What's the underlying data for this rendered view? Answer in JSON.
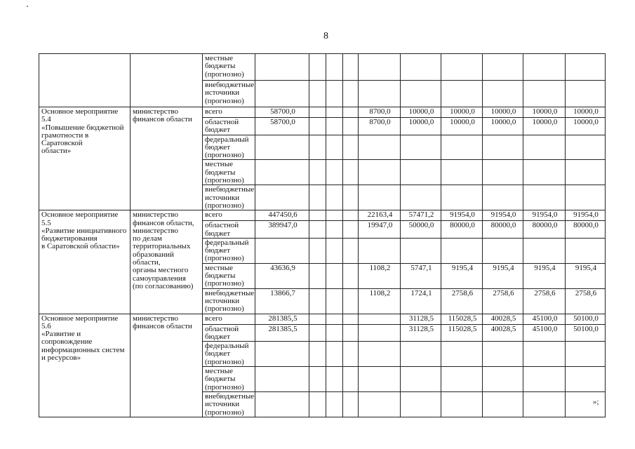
{
  "page": {
    "number": "8",
    "closing_mark": "»;"
  },
  "table": {
    "blocks": [
      {
        "program": "",
        "ministry": "",
        "rows": [
          {
            "type": "местные\nбюджеты\n(прогнозно)",
            "total": "",
            "years": [
              "",
              "",
              "",
              "",
              "",
              ""
            ]
          },
          {
            "type": "внебюджетные\nисточники\n(прогнозно)",
            "total": "",
            "years": [
              "",
              "",
              "",
              "",
              "",
              ""
            ]
          }
        ]
      },
      {
        "program": "Основное мероприятие 5.4\n«Повышение бюджетной\nграмотности в Саратовской\nобласти»",
        "ministry": "министерство\nфинансов области",
        "rows": [
          {
            "type": "всего",
            "total": "58700,0",
            "years": [
              "8700,0",
              "10000,0",
              "10000,0",
              "10000,0",
              "10000,0",
              "10000,0"
            ]
          },
          {
            "type": "областной\nбюджет",
            "total": "58700,0",
            "years": [
              "8700,0",
              "10000,0",
              "10000,0",
              "10000,0",
              "10000,0",
              "10000,0"
            ]
          },
          {
            "type": "федеральный\nбюджет\n(прогнозно)",
            "total": "",
            "years": [
              "",
              "",
              "",
              "",
              "",
              ""
            ]
          },
          {
            "type": "местные\nбюджеты\n(прогнозно)",
            "total": "",
            "years": [
              "",
              "",
              "",
              "",
              "",
              ""
            ]
          },
          {
            "type": "внебюджетные\nисточники\n(прогнозно)",
            "total": "",
            "years": [
              "",
              "",
              "",
              "",
              "",
              ""
            ]
          }
        ]
      },
      {
        "program": "Основное мероприятие 5.5\n«Развитие инициативного\nбюджетирования\nв Саратовской области»",
        "ministry": "министерство\nфинансов области,\nминистерство\nпо делам\nтерриториальных\nобразований области,\nорганы местного\nсамоуправления\n(по согласованию)",
        "rows": [
          {
            "type": "всего",
            "total": "447450,6",
            "years": [
              "22163,4",
              "57471,2",
              "91954,0",
              "91954,0",
              "91954,0",
              "91954,0"
            ]
          },
          {
            "type": "областной\nбюджет",
            "total": "389947,0",
            "years": [
              "19947,0",
              "50000,0",
              "80000,0",
              "80000,0",
              "80000,0",
              "80000,0"
            ]
          },
          {
            "type": "федеральный\nбюджет\n(прогнозно)",
            "total": "",
            "years": [
              "",
              "",
              "",
              "",
              "",
              ""
            ]
          },
          {
            "type": "местные\nбюджеты\n(прогнозно)",
            "total": "43636,9",
            "years": [
              "1108,2",
              "5747,1",
              "9195,4",
              "9195,4",
              "9195,4",
              "9195,4"
            ]
          },
          {
            "type": "внебюджетные\nисточники\n(прогнозно)",
            "total": "13866,7",
            "years": [
              "1108,2",
              "1724,1",
              "2758,6",
              "2758,6",
              "2758,6",
              "2758,6"
            ]
          }
        ]
      },
      {
        "program": "Основное мероприятие 5.6\n«Развитие и сопровождение\nинформационных систем\nи ресурсов»",
        "ministry": "министерство\nфинансов области",
        "rows": [
          {
            "type": "всего",
            "total": "281385,5",
            "years": [
              "",
              "31128,5",
              "115028,5",
              "40028,5",
              "45100,0",
              "50100,0"
            ]
          },
          {
            "type": "областной\nбюджет",
            "total": "281385,5",
            "years": [
              "",
              "31128,5",
              "115028,5",
              "40028,5",
              "45100,0",
              "50100,0"
            ]
          },
          {
            "type": "федеральный\nбюджет\n(прогнозно)",
            "total": "",
            "years": [
              "",
              "",
              "",
              "",
              "",
              ""
            ]
          },
          {
            "type": "местные\nбюджеты\n(прогнозно)",
            "total": "",
            "years": [
              "",
              "",
              "",
              "",
              "",
              ""
            ]
          },
          {
            "type": "внебюджетные\nисточники\n(прогнозно)",
            "total": "",
            "years": [
              "",
              "",
              "",
              "",
              "",
              ""
            ]
          }
        ]
      }
    ]
  }
}
